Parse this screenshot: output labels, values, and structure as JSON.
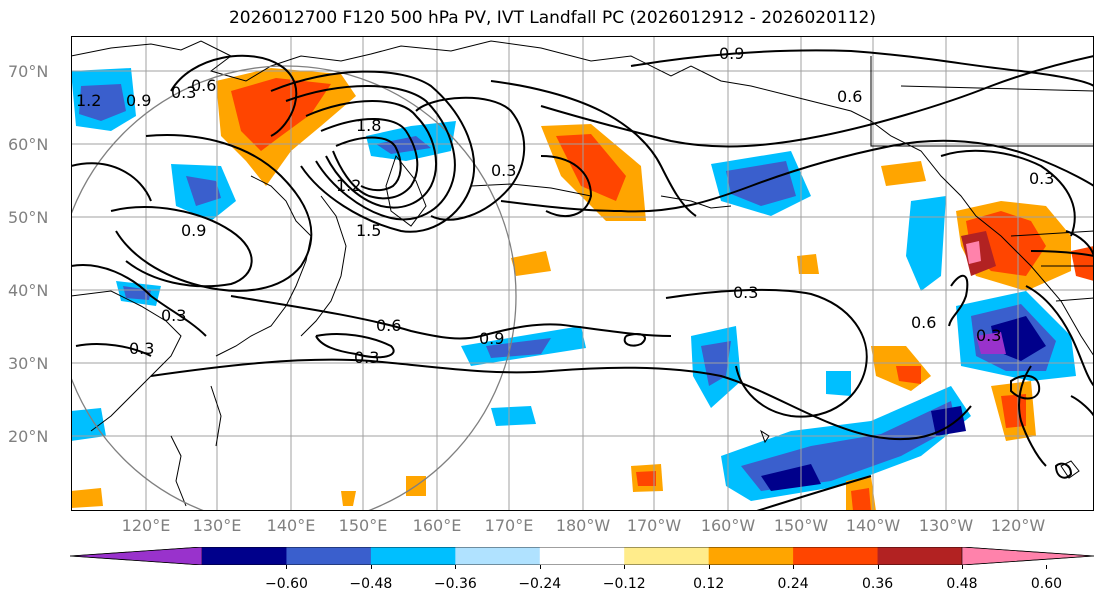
{
  "title": "2026012700 F120 500 hPa PV, IVT Landfall PC (2026012912 - 2026020112)",
  "map": {
    "lat_labels": [
      "70°N",
      "60°N",
      "50°N",
      "40°N",
      "30°N",
      "20°N"
    ],
    "lon_labels": [
      "120°E",
      "130°E",
      "140°E",
      "150°E",
      "160°E",
      "170°E",
      "180°W",
      "170°W",
      "160°W",
      "150°W",
      "140°W",
      "130°W",
      "120°W"
    ],
    "contour_labels": [
      "0.9",
      "0.6",
      "0.3",
      "1.8",
      "1.5",
      "1.2",
      "0.9",
      "0.3",
      "0.6",
      "0.3",
      "0.6",
      "0.9",
      "0.3",
      "0.3",
      "0.6",
      "0.3",
      "1.2",
      "0.9",
      "0.3",
      "0.3"
    ]
  },
  "colorbar": {
    "colors": [
      "#9932cc",
      "#00008b",
      "#3a5fcd",
      "#00bfff",
      "#b0e2ff",
      "#ffffff",
      "#ffec8b",
      "#ffa500",
      "#ff4500",
      "#b22222",
      "#ff82ab"
    ],
    "tick_labels": [
      "−0.60",
      "−0.48",
      "−0.36",
      "−0.24",
      "−0.12",
      "0.12",
      "0.24",
      "0.36",
      "0.48",
      "0.60"
    ]
  }
}
